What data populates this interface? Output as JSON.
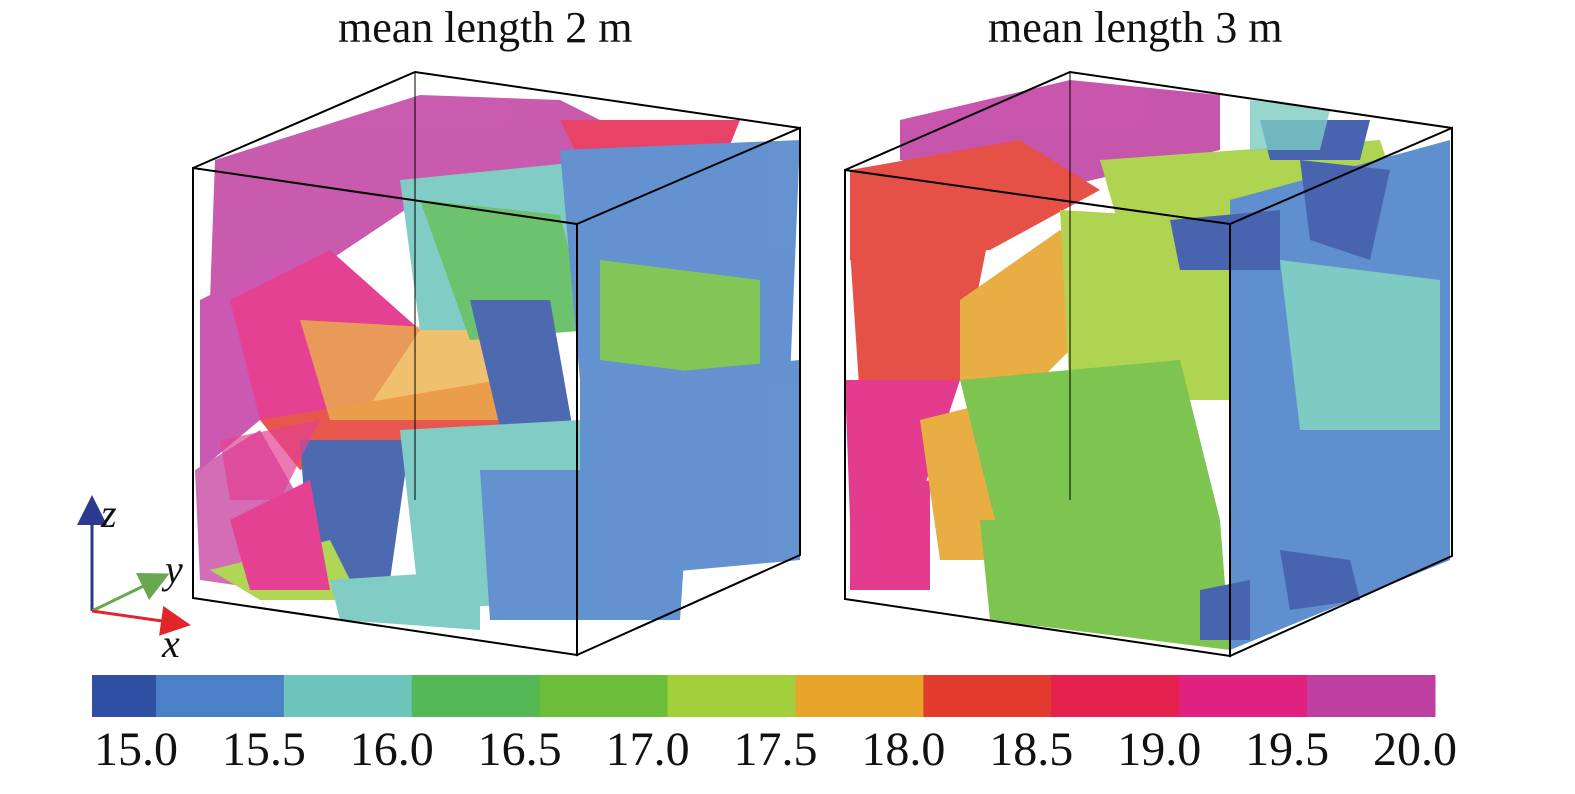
{
  "panels": [
    {
      "title": "mean length 2 m"
    },
    {
      "title": "mean length 3 m"
    }
  ],
  "axes": {
    "x": "x",
    "y": "y",
    "z": "z"
  },
  "colorbar": {
    "ticks": [
      "15.0",
      "15.5",
      "16.0",
      "16.5",
      "17.0",
      "17.5",
      "18.0",
      "18.5",
      "19.0",
      "19.5",
      "20.0"
    ],
    "min": 15.0,
    "max": 20.0,
    "colors": [
      "#2f4fa3",
      "#4a80c8",
      "#6cc4bb",
      "#54b855",
      "#6cbd3a",
      "#a3cf3a",
      "#e7a32a",
      "#e33a2e",
      "#e5224d",
      "#e0217f",
      "#bf3fa0"
    ],
    "segment_starts": [
      14.75,
      15.0,
      15.5,
      16.0,
      16.5,
      17.0,
      17.5,
      18.0,
      18.5,
      19.0,
      19.5
    ],
    "segment_ends": [
      15.0,
      15.5,
      16.0,
      16.5,
      17.0,
      17.5,
      18.0,
      18.5,
      19.0,
      19.5,
      20.0
    ]
  }
}
